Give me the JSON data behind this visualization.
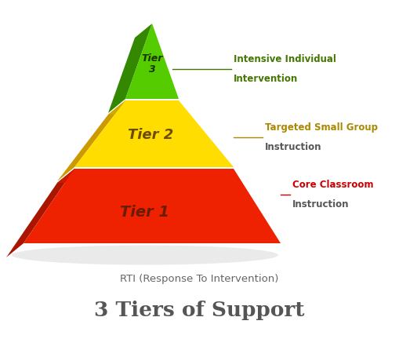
{
  "bg_color": "#ffffff",
  "title_sub": "RTI (Response To Intervention)",
  "title_main": "3 Tiers of Support",
  "title_sub_color": "#666666",
  "title_main_color": "#555555",
  "title_sub_fontsize": 9.5,
  "title_main_fontsize": 19,
  "tier1_label": "Tier 1",
  "tier1_desc1": "Core Classroom",
  "tier1_desc2": "Instruction",
  "tier1_desc1_color": "#cc0000",
  "tier1_desc2_color": "#555555",
  "tier1_face_color": "#ee2200",
  "tier1_left_color": "#aa1500",
  "tier1_label_color": "#6b1c00",
  "tier2_label": "Tier 2",
  "tier2_desc1": "Targeted Small Group",
  "tier2_desc2": "Instruction",
  "tier2_desc1_color": "#aa8800",
  "tier2_desc2_color": "#555555",
  "tier2_face_color": "#ffdd00",
  "tier2_left_color": "#cc9900",
  "tier2_label_color": "#6b4c00",
  "tier3_label": "Tier\n3",
  "tier3_desc1": "Intensive Individual",
  "tier3_desc2": "Intervention",
  "tier3_desc1_color": "#447700",
  "tier3_desc2_color": "#447700",
  "tier3_face_color": "#55cc00",
  "tier3_left_color": "#338800",
  "tier3_label_color": "#1a3300",
  "line_color_tier1": "#cc0000",
  "line_color_tier2": "#aa8800",
  "line_color_tier3": "#447700"
}
